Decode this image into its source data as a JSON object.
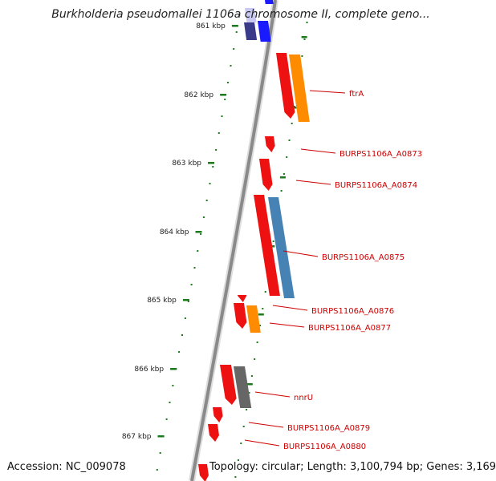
{
  "title": "Burkholderia pseudomallei 1106a chromosome II, complete geno...",
  "accession": "Accession: NC_009078",
  "topology": "Topology: circular; Length: 3,100,794 bp; Genes: 3,169",
  "colors": {
    "backbone": "#8a8a8a",
    "tick": "#1b7a1b",
    "label": "#cc0000",
    "gene_red": "#ee1111",
    "gene_orange": "#ff8c00",
    "gene_steelblue": "#4682b4",
    "gene_blue": "#1a1aff",
    "gene_navy": "#3a3a8a",
    "gene_lavender": "#c8c8f0",
    "gene_gray": "#666666"
  },
  "kbp_ticks": [
    "861 kbp",
    "862 kbp",
    "863 kbp",
    "864 kbp",
    "865 kbp",
    "866 kbp",
    "867 kbp"
  ],
  "gene_labels": [
    "ftrA",
    "BURPS1106A_A0873",
    "BURPS1106A_A0874",
    "BURPS1106A_A0875",
    "BURPS1106A_A0876",
    "BURPS1106A_A0877",
    "nnrU",
    "BURPS1106A_A0879",
    "BURPS1106A_A0880"
  ]
}
